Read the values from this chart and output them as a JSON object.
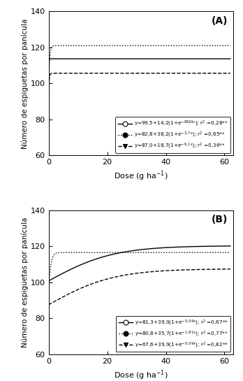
{
  "panel_A": {
    "label": "(A)",
    "curves": [
      {
        "a": 99.5,
        "b": 14.2,
        "c": 8610,
        "linestyle": "solid",
        "marker": "o",
        "fillstyle": "none"
      },
      {
        "a": 82.8,
        "b": 38.2,
        "c": 3.7,
        "linestyle": "dotted",
        "marker": "o",
        "fillstyle": "full"
      },
      {
        "a": 87.0,
        "b": 18.7,
        "c": 6.1,
        "linestyle": "dashed",
        "marker": "v",
        "fillstyle": "full"
      }
    ],
    "ylim": [
      60,
      140
    ],
    "yticks": [
      60,
      80,
      100,
      120,
      140
    ],
    "xlim": [
      0,
      63
    ],
    "xticks": [
      0,
      20,
      40,
      60
    ],
    "legend_labels": [
      "y=99,5+14,2(1+e$^{-8610x}$); r$^2$ =0,28**",
      "y=82,8+38,2(1+e$^{-3,7x}$); r$^2$ =0,65**",
      "y=87,0+18,7(1+e$^{-6,1x}$); r$^2$ =0,36**"
    ]
  },
  "panel_B": {
    "label": "(B)",
    "curves": [
      {
        "a": 81.3,
        "b": 39.0,
        "c": 0.09,
        "linestyle": "solid",
        "marker": "o",
        "fillstyle": "none"
      },
      {
        "a": 80.8,
        "b": 35.7,
        "c": 1.81,
        "linestyle": "dotted",
        "marker": "o",
        "fillstyle": "full"
      },
      {
        "a": 67.6,
        "b": 39.9,
        "c": 0.09,
        "linestyle": "dashed",
        "marker": "v",
        "fillstyle": "full"
      }
    ],
    "ylim": [
      60,
      140
    ],
    "yticks": [
      60,
      80,
      100,
      120,
      140
    ],
    "xlim": [
      0,
      63
    ],
    "xticks": [
      0,
      20,
      40,
      60
    ],
    "legend_labels": [
      "y=81,3+39,0(1+e$^{-0,09x}$); r$^2$ =0,67**",
      "y=80,8+35,7(1+e$^{-1,81x}$); r$^2$ =0,77**",
      "y=67,6+39,9(1+e$^{-0,09x}$); r$^2$ =0,82**"
    ]
  },
  "ylabel": "Número de espiguetas por panícula",
  "xlabel": "Dose (g ha$^{-1}$)",
  "fig_width": 3.48,
  "fig_height": 5.45,
  "dpi": 100
}
